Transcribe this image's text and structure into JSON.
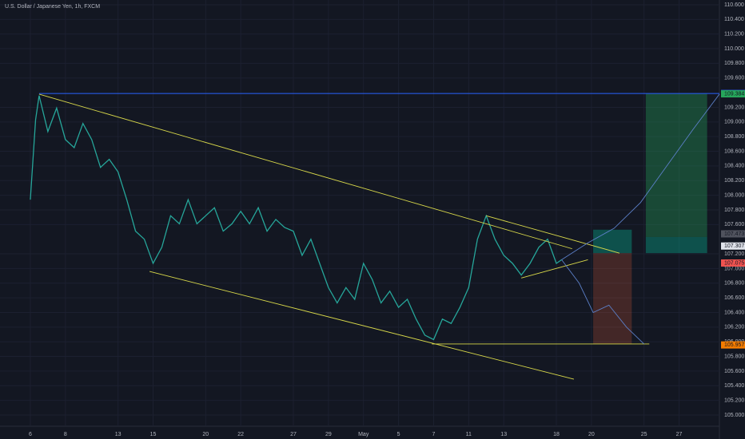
{
  "chart_data": {
    "type": "line",
    "title": "U.S. Dollar / Japanese Yen, 1h, FXCM",
    "x": [
      0,
      0.3,
      0.5,
      1,
      1.5,
      2,
      2.5,
      3,
      3.5,
      4,
      4.5,
      5,
      5.5,
      6,
      6.5,
      7,
      7.5,
      8,
      8.5,
      9,
      9.5,
      10,
      10.5,
      11,
      11.5,
      12,
      12.5,
      13,
      13.5,
      14,
      14.5,
      15,
      15.5,
      16,
      16.5,
      17,
      17.5,
      18,
      18.5,
      19,
      19.5,
      20,
      20.5,
      21,
      21.5,
      22,
      22.5,
      23,
      23.5,
      24,
      24.5,
      25,
      25.5,
      26,
      26.5,
      27,
      27.5,
      28,
      28.5,
      29,
      29.5,
      30,
      30.3
    ],
    "series": [
      {
        "color": "#26a69a",
        "values": [
          107.94,
          109.03,
          109.36,
          108.87,
          109.19,
          108.76,
          108.65,
          108.98,
          108.76,
          108.38,
          108.49,
          108.32,
          107.94,
          107.51,
          107.4,
          107.07,
          107.29,
          107.72,
          107.61,
          107.94,
          107.61,
          107.72,
          107.83,
          107.51,
          107.61,
          107.78,
          107.61,
          107.83,
          107.51,
          107.67,
          107.56,
          107.51,
          107.18,
          107.4,
          107.07,
          106.74,
          106.53,
          106.74,
          106.58,
          107.07,
          106.85,
          106.53,
          106.69,
          106.47,
          106.58,
          106.31,
          106.09,
          106.03,
          106.31,
          106.25,
          106.47,
          106.74,
          107.4,
          107.72,
          107.4,
          107.18,
          107.07,
          106.91,
          107.07,
          107.29,
          107.4,
          107.07,
          107.12
        ]
      }
    ],
    "xlim": [
      -1.73,
      39.3
    ],
    "ylim": [
      104.673,
      110.665
    ],
    "xticks": [
      {
        "value": 0,
        "label": "6"
      },
      {
        "value": 2,
        "label": "8"
      },
      {
        "value": 5,
        "label": "13"
      },
      {
        "value": 7,
        "label": "15"
      },
      {
        "value": 10,
        "label": "20"
      },
      {
        "value": 12,
        "label": "22"
      },
      {
        "value": 15,
        "label": "27"
      },
      {
        "value": 17,
        "label": "29"
      },
      {
        "value": 19,
        "label": "May"
      },
      {
        "value": 21,
        "label": "5"
      },
      {
        "value": 23,
        "label": "7"
      },
      {
        "value": 25,
        "label": "11"
      },
      {
        "value": 27,
        "label": "13"
      },
      {
        "value": 30,
        "label": "18"
      },
      {
        "value": 32,
        "label": "20"
      },
      {
        "value": 35,
        "label": "25"
      },
      {
        "value": 37,
        "label": "27"
      }
    ],
    "yticks": [
      {
        "value": 105,
        "label": "105.000"
      },
      {
        "value": 105.2,
        "label": "105.200"
      },
      {
        "value": 105.4,
        "label": "105.400"
      },
      {
        "value": 105.6,
        "label": "105.600"
      },
      {
        "value": 105.8,
        "label": "105.800"
      },
      {
        "value": 106,
        "label": "106.000"
      },
      {
        "value": 106.2,
        "label": "106.200"
      },
      {
        "value": 106.4,
        "label": "106.400"
      },
      {
        "value": 106.6,
        "label": "106.600"
      },
      {
        "value": 106.8,
        "label": "106.800"
      },
      {
        "value": 107,
        "label": "107.000"
      },
      {
        "value": 107.2,
        "label": "107.200"
      },
      {
        "value": 107.6,
        "label": "107.600"
      },
      {
        "value": 107.8,
        "label": "107.800"
      },
      {
        "value": 108,
        "label": "108.000"
      },
      {
        "value": 108.2,
        "label": "108.200"
      },
      {
        "value": 108.4,
        "label": "108.400"
      },
      {
        "value": 108.6,
        "label": "108.600"
      },
      {
        "value": 108.8,
        "label": "108.800"
      },
      {
        "value": 109,
        "label": "109.000"
      },
      {
        "value": 109.2,
        "label": "109.200"
      },
      {
        "value": 109.6,
        "label": "109.600"
      },
      {
        "value": 109.8,
        "label": "109.800"
      },
      {
        "value": 110,
        "label": "110.000"
      },
      {
        "value": 110.2,
        "label": "110.200"
      },
      {
        "value": 110.4,
        "label": "110.400"
      },
      {
        "value": 110.6,
        "label": "110.600"
      }
    ],
    "grid": true,
    "trendlines": [
      {
        "color": "#d8d84a",
        "x": [
          0.5,
          30.9
        ],
        "y": [
          109.38,
          107.27
        ]
      },
      {
        "color": "#d8d84a",
        "x": [
          6.8,
          31
        ],
        "y": [
          106.96,
          105.49
        ]
      },
      {
        "color": "#d8d84a",
        "x": [
          22.9,
          35.3
        ],
        "y": [
          105.97,
          105.97
        ]
      },
      {
        "color": "#d8d84a",
        "x": [
          26,
          33.6
        ],
        "y": [
          107.72,
          107.21
        ]
      },
      {
        "color": "#d8d84a",
        "x": [
          28,
          31.8
        ],
        "y": [
          106.87,
          107.12
        ]
      },
      {
        "color": "#2962ff",
        "x": [
          0.5,
          39.3
        ],
        "y": [
          109.389,
          109.389
        ]
      },
      {
        "color": "#5b7fc7",
        "x": [
          30.3,
          31.8,
          33.3,
          34.8,
          36.3,
          37.8,
          39.3
        ],
        "y": [
          107.12,
          107.35,
          107.55,
          107.9,
          108.4,
          108.9,
          109.38
        ]
      },
      {
        "color": "#5b7fc7",
        "x": [
          30.3,
          31.3,
          32.1,
          33,
          34,
          35
        ],
        "y": [
          107.12,
          106.8,
          106.4,
          106.5,
          106.2,
          105.97
        ]
      }
    ],
    "positions": [
      {
        "color": "rgba(38,166,91,0.35)",
        "x": [
          35.1,
          38.6
        ],
        "y": [
          109.384,
          107.43
        ]
      },
      {
        "color": "rgba(8,153,129,0.45)",
        "x": [
          35.1,
          38.6
        ],
        "y": [
          107.43,
          107.21
        ]
      },
      {
        "color": "rgba(8,153,129,0.45)",
        "x": [
          32.1,
          34.3
        ],
        "y": [
          107.53,
          107.21
        ]
      },
      {
        "color": "rgba(242,100,60,0.22)",
        "x": [
          32.1,
          34.3
        ],
        "y": [
          107.21,
          105.97
        ]
      }
    ],
    "price_labels": [
      {
        "value": 109.389,
        "color": "#2962ff"
      },
      {
        "value": 109.384,
        "color": "#26a65b"
      },
      {
        "value": 107.473,
        "color": "#50535e"
      },
      {
        "value": 107.307,
        "color": "#e0e3eb"
      },
      {
        "value": 107.075,
        "color": "#ef5350"
      },
      {
        "value": 105.957,
        "color": "#f57c00"
      }
    ]
  }
}
